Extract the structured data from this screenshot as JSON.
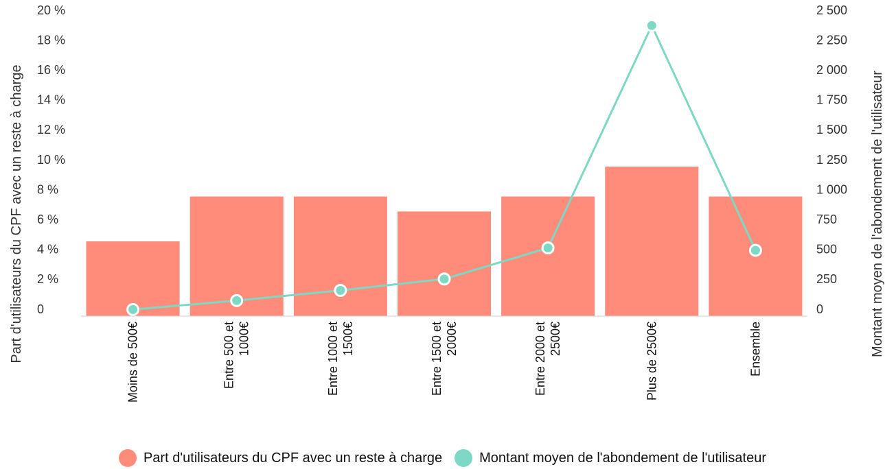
{
  "chart_data": {
    "type": "bar+line",
    "categories": [
      "Moins de 500€",
      "Entre 500 et 1000€",
      "Entre 1000 et 1500€",
      "Entre 1500 et 2000€",
      "Entre 2000 et 2500€",
      "Plus de 2500€",
      "Ensemble"
    ],
    "category_lines": [
      [
        "Moins de 500€"
      ],
      [
        "Entre 500 et",
        "1000€"
      ],
      [
        "Entre 1000 et",
        "1500€"
      ],
      [
        "Entre 1500 et",
        "2000€"
      ],
      [
        "Entre 2000 et",
        "2500€"
      ],
      [
        "Plus de 2500€"
      ],
      [
        "Ensemble"
      ]
    ],
    "series": [
      {
        "name": "Part d'utilisateurs du CPF avec un reste à charge",
        "type": "bar",
        "axis": "left",
        "color": "#FF8C7B",
        "values": [
          5,
          8,
          8,
          7,
          8,
          10,
          8
        ]
      },
      {
        "name": "Montant moyen de l'abondement de l'utilisateur",
        "type": "line",
        "axis": "right",
        "color": "#7DD8C6",
        "values": [
          55,
          130,
          215,
          310,
          570,
          2430,
          550
        ]
      }
    ],
    "y_left": {
      "label": "Part d'utilisateurs du CPF avec un reste à charge",
      "min": 0,
      "max": 20,
      "ticks": [
        "0",
        "2 %",
        "4 %",
        "6 %",
        "8 %",
        "10 %",
        "12 %",
        "14 %",
        "16 %",
        "18 %",
        "20 %"
      ]
    },
    "y_right": {
      "label": "Montant moyen de l'abondement de l'utilisateur",
      "min": 0,
      "max": 2500,
      "ticks": [
        "0",
        "250",
        "500",
        "750",
        "1 000",
        "1 250",
        "1 500",
        "1 750",
        "2 000",
        "2 250",
        "2 500"
      ]
    },
    "legend_position": "bottom-center",
    "grid": false
  },
  "legend": {
    "items": [
      {
        "label": "Part d'utilisateurs du CPF avec un reste à charge",
        "color": "#FF8C7B"
      },
      {
        "label": "Montant moyen de l'abondement de l'utilisateur",
        "color": "#7DD8C6"
      }
    ]
  }
}
